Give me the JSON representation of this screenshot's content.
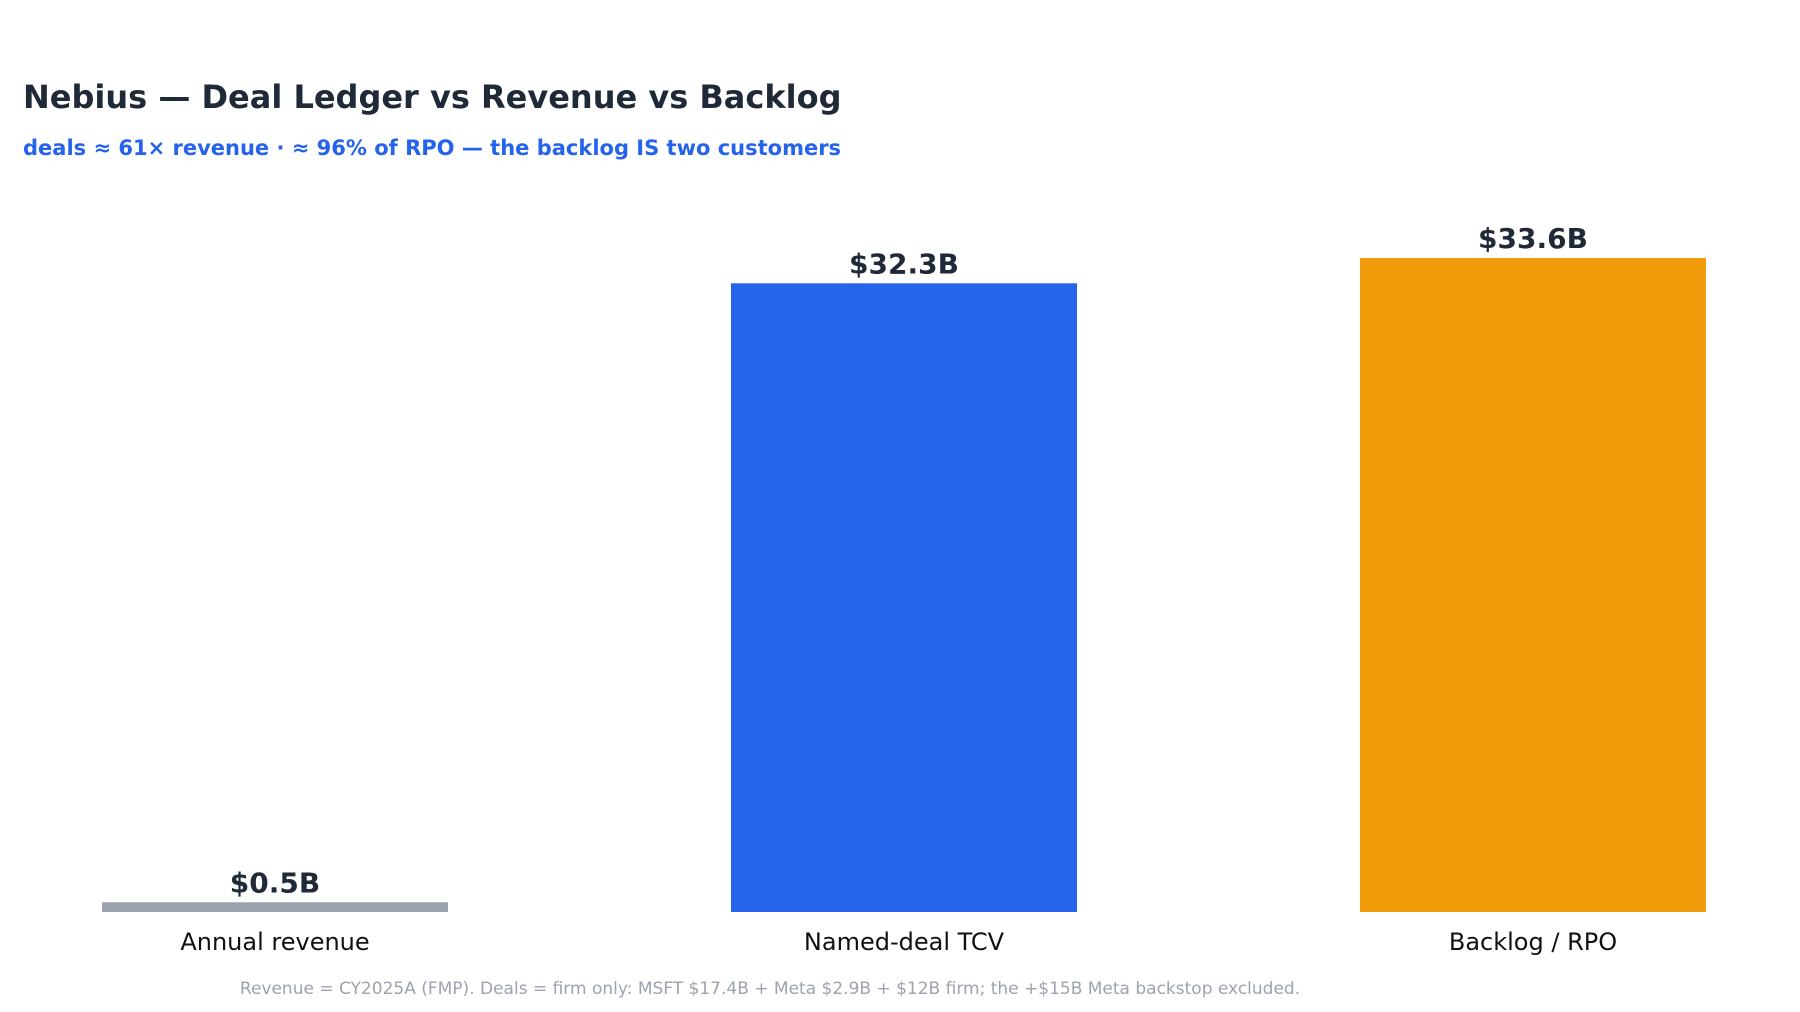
{
  "chart_data": {
    "type": "bar",
    "title": "Nebius — Deal Ledger vs Revenue vs Backlog",
    "subtitle": "deals ≈ 61× revenue · ≈ 96% of RPO — the backlog IS two customers",
    "categories": [
      "Annual revenue",
      "Named-deal TCV",
      "Backlog / RPO"
    ],
    "values": [
      0.5,
      32.3,
      33.6
    ],
    "value_labels": [
      "$0.5B",
      "$32.3B",
      "$33.6B"
    ],
    "unit": "$B",
    "colors": [
      "#9ca3af",
      "#2563eb",
      "#f39c0b"
    ],
    "ylim": [
      0,
      33.6
    ],
    "grid": false,
    "legend": "none",
    "footnote": "Revenue = CY2025A (FMP). Deals = firm only: MSFT $17.4B + Meta $2.9B + $12B firm; the +$15B Meta backstop excluded."
  }
}
